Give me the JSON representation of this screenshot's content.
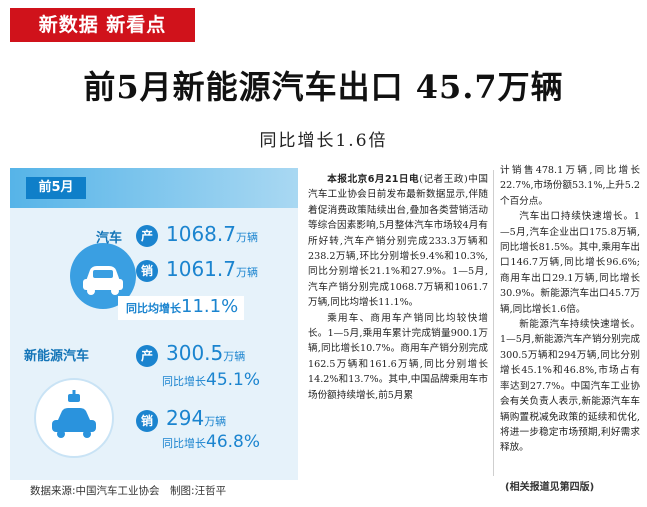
{
  "header": {
    "tag": "新数据 新看点",
    "headline": "前5月新能源汽车出口 45.7万辆",
    "subhead": "同比增长1.6倍"
  },
  "infographic": {
    "period": "前5月",
    "auto": {
      "label": "汽车",
      "production_badge": "产",
      "production_value": "1068.7",
      "sales_badge": "销",
      "sales_value": "1061.7",
      "unit": "万辆",
      "growth_label": "同比均增长",
      "growth_value": "11.1%"
    },
    "nev": {
      "label": "新能源汽车",
      "production_badge": "产",
      "production_value": "300.5",
      "production_growth_label": "同比增长",
      "production_growth_value": "45.1%",
      "sales_badge": "销",
      "sales_value": "294",
      "sales_growth_label": "同比增长",
      "sales_growth_value": "46.8%",
      "unit": "万辆"
    },
    "credits": "数据来源:中国汽车工业协会　制图:汪哲平"
  },
  "article": {
    "col1": [
      {
        "lead": "本报北京6月21日电",
        "text": "(记者王政)中国汽车工业协会日前发布最新数据显示,伴随着促消费政策陆续出台,叠加各类营销活动等综合因素影响,5月整体汽车市场较4月有所好转,汽车产销分别完成233.3万辆和238.2万辆,环比分别增长9.4%和10.3%,同比分别增长21.1%和27.9%。1—5月,汽车产销分别完成1068.7万辆和1061.7万辆,同比均增长11.1%。"
      },
      {
        "lead": "",
        "text": "乘用车、商用车产销同比均较快增长。1—5月,乘用车累计完成销量900.1万辆,同比增长10.7%。商用车产销分别完成162.5万辆和161.6万辆,同比分别增长14.2%和13.7%。其中,中国品牌乘用车市场份额持续增长,前5月累"
      }
    ],
    "col2": [
      {
        "text": "计销售478.1万辆,同比增长22.7%,市场份额53.1%,上升5.2个百分点。",
        "noindent": true
      },
      {
        "text": "汽车出口持续快速增长。1—5月,汽车企业出口175.8万辆,同比增长81.5%。其中,乘用车出口146.7万辆,同比增长96.6%;商用车出口29.1万辆,同比增长30.9%。新能源汽车出口45.7万辆,同比增长1.6倍。"
      },
      {
        "text": "新能源汽车持续快速增长。1—5月,新能源汽车产销分别完成300.5万辆和294万辆,同比分别增长45.1%和46.8%,市场占有率达到27.7%。中国汽车工业协会有关负责人表示,新能源汽车车辆购置税减免政策的延续和优化,将进一步稳定市场预期,利好需求释放。"
      }
    ],
    "note": "(相关报道见第四版)"
  },
  "colors": {
    "brand_red": "#d0121b",
    "accent_blue": "#1b84cf",
    "panel_bg": "#e6f2fa"
  },
  "icons": [
    "car-icon",
    "ev-charging-icon"
  ]
}
